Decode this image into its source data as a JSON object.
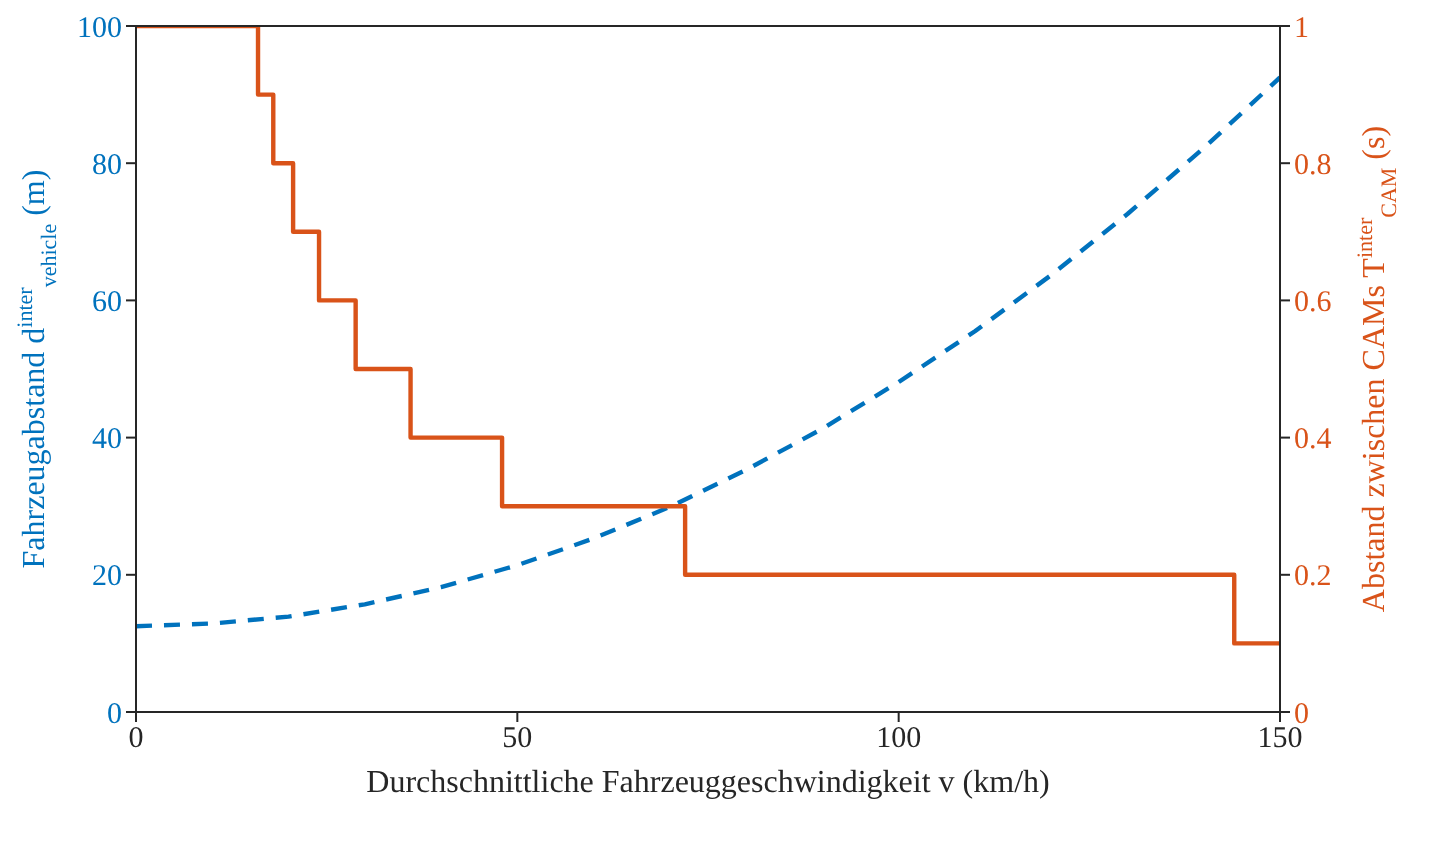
{
  "chart_data": {
    "type": "line",
    "xlabel": "Durchschnittliche Fahrzeuggeschwindigkeit v (km/h)",
    "ylabel": "Fahrzeugabstand d$^{inter}$$_{vehicle}$ (m)",
    "y2label": "Abstand zwischen CAMs T$^{inter}$$_{CAM}$ (s)",
    "x": [
      0,
      10,
      20,
      30,
      40,
      50,
      60,
      70,
      80,
      90,
      100,
      110,
      120,
      130,
      140,
      150
    ],
    "series": [
      {
        "color": "#0072bd",
        "line_style": "dashed",
        "values": [
          12.5,
          12.9,
          13.9,
          15.7,
          18.2,
          21.4,
          25.3,
          29.9,
          35.3,
          41.3,
          48.1,
          55.5,
          63.7,
          72.6,
          82.2,
          92.5
        ]
      },
      {
        "type": "step",
        "axis": "y2",
        "color": "#d95319",
        "line_style": "solid",
        "x": [
          0,
          16,
          18,
          20.6,
          24,
          28.8,
          36,
          48,
          72,
          144,
          150
        ],
        "values": [
          1,
          0.9,
          0.8,
          0.7,
          0.6,
          0.5,
          0.4,
          0.3,
          0.2,
          0.1,
          0.1
        ]
      }
    ],
    "xlim": [
      0,
      150
    ],
    "xticks": [
      0,
      50,
      100,
      150
    ],
    "ylim": [
      0,
      100
    ],
    "yticks": [
      0,
      20,
      40,
      60,
      80,
      100
    ],
    "y2lim": [
      0,
      1
    ],
    "y2ticks": [
      0,
      0.2,
      0.4,
      0.6,
      0.8,
      1
    ],
    "grid": false,
    "legend": false,
    "marker": "none"
  }
}
